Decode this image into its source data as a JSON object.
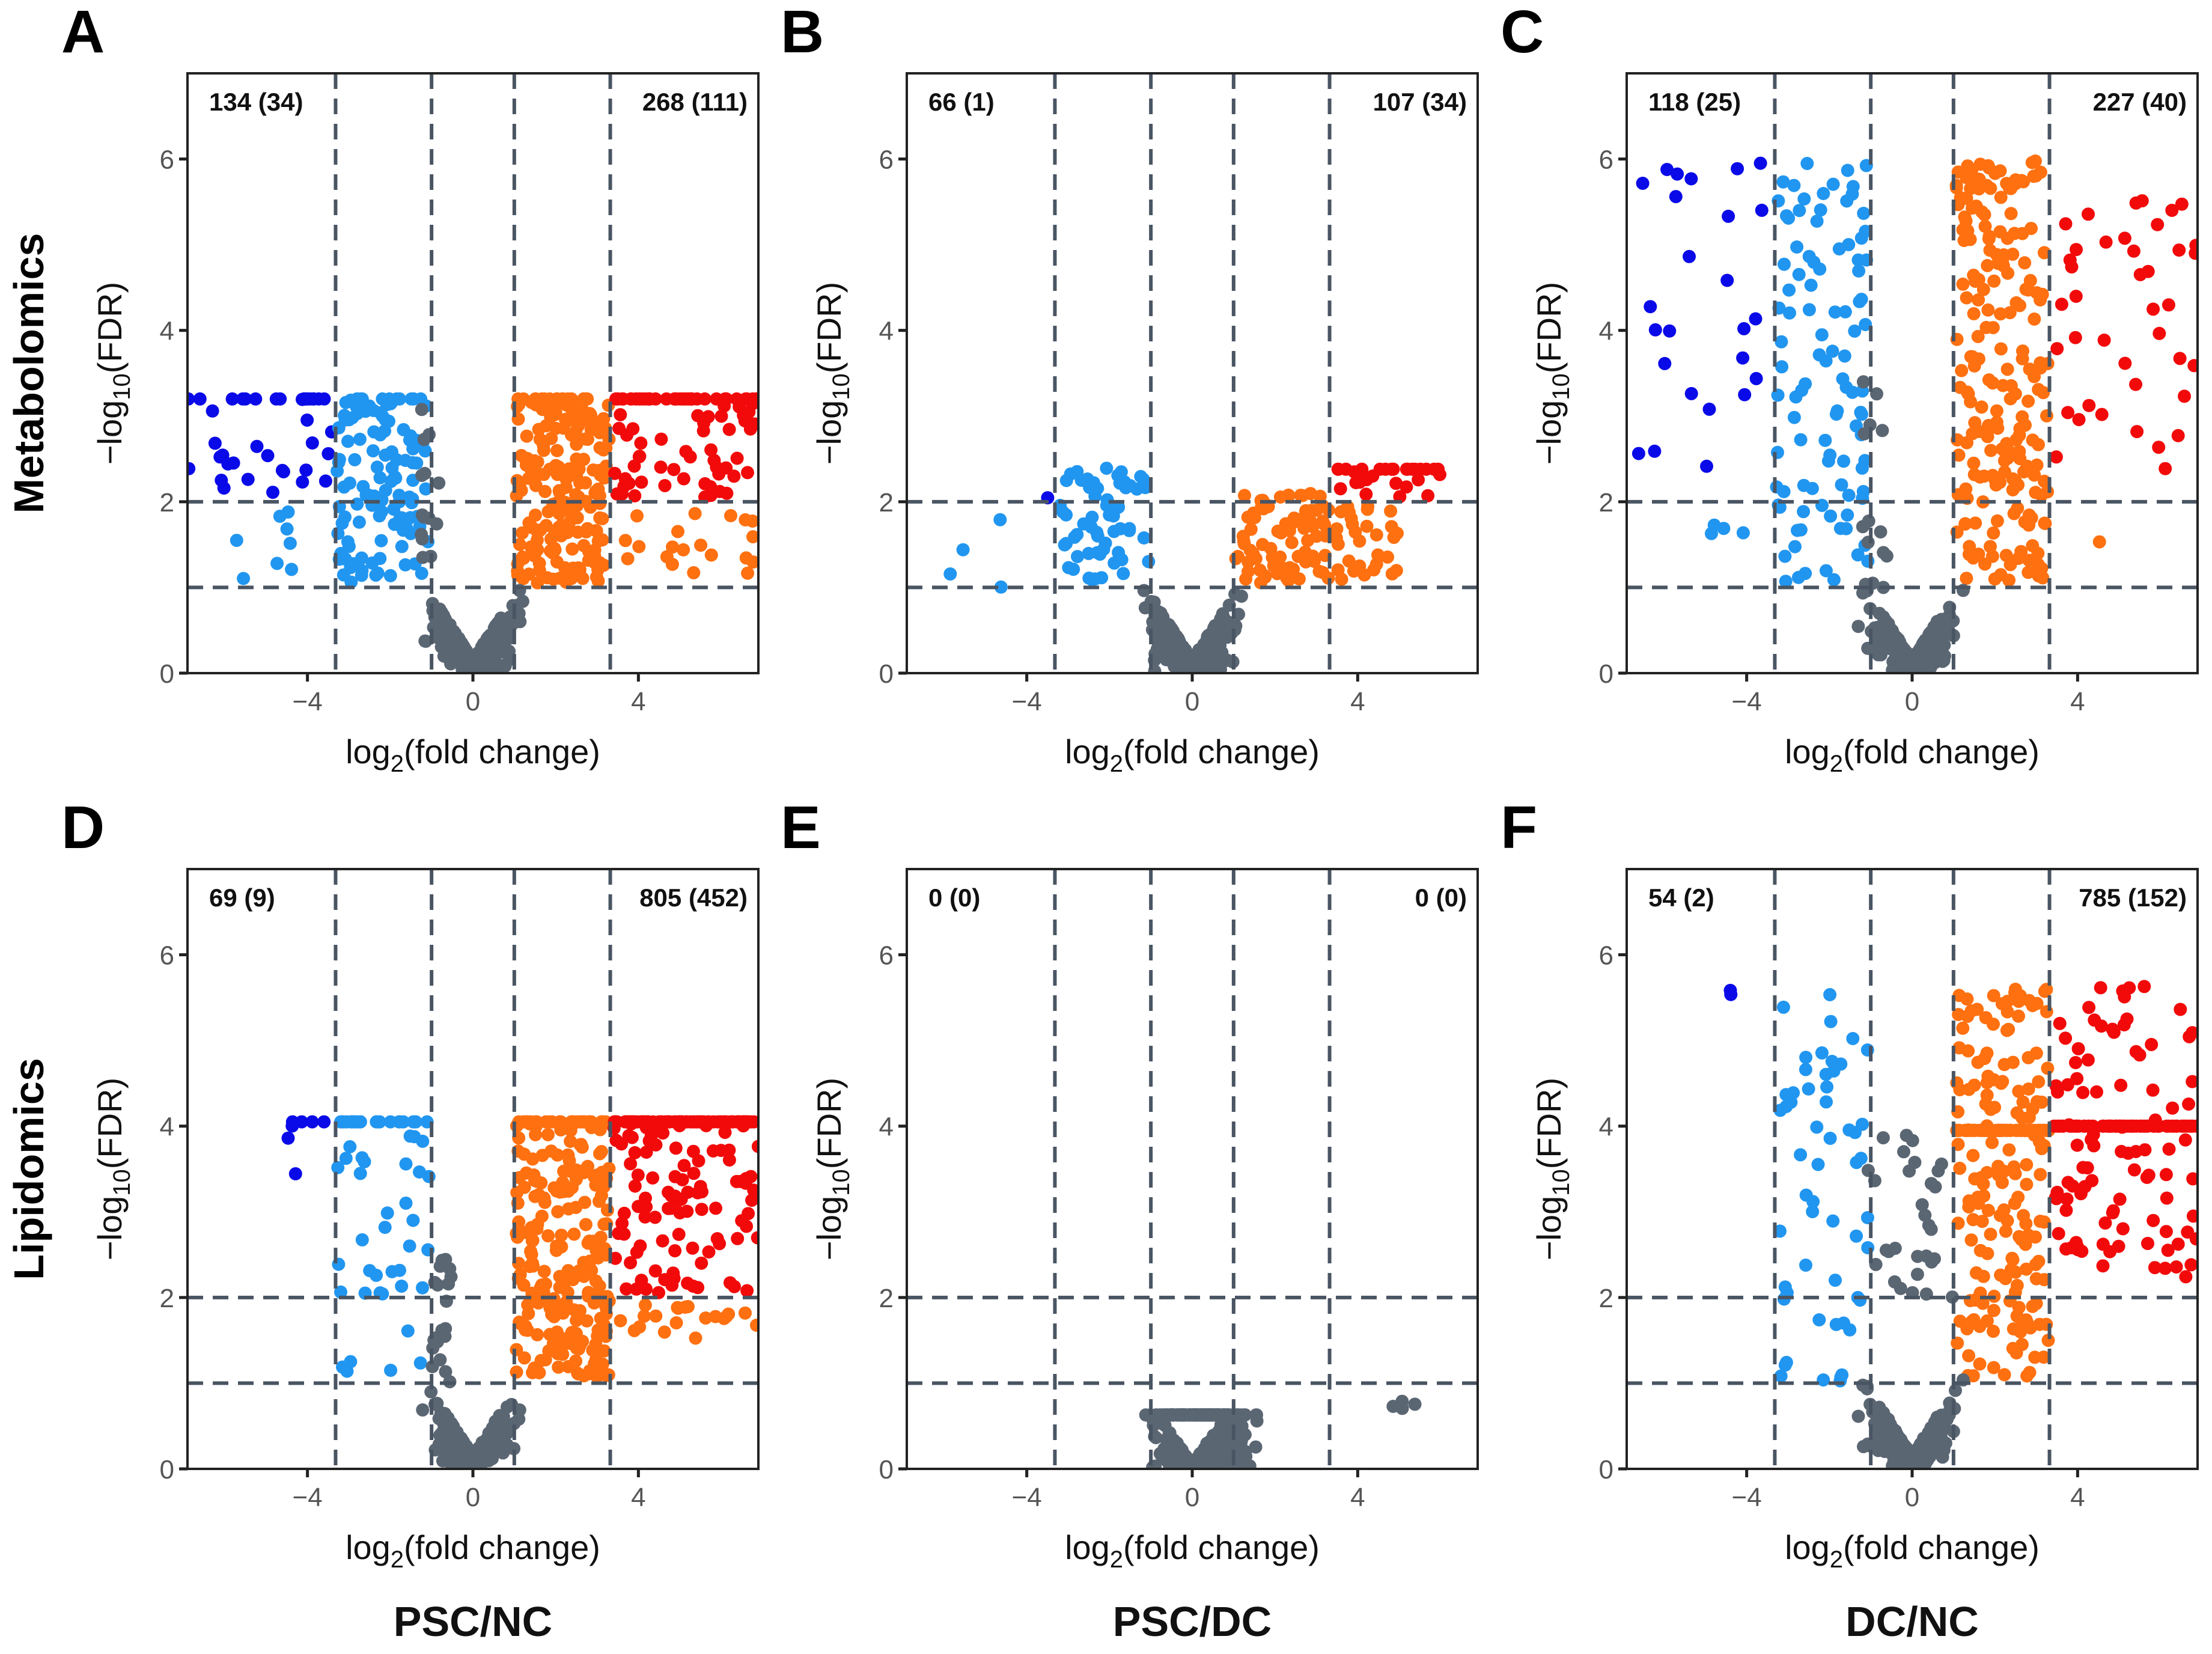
{
  "colors": {
    "down_strong": "#0a0ae8",
    "down": "#2196f0",
    "up": "#ff7010",
    "up_strong": "#f20a0a",
    "ns": "#5b6673",
    "threshold_line": "#4a5563"
  },
  "row_labels": [
    "Metabolomics",
    "Lipidomics"
  ],
  "col_labels": [
    "PSC/NC",
    "PSC/DC",
    "DC/NC"
  ],
  "chart_data": [
    {
      "type": "scatter",
      "panel": "A",
      "row": 0,
      "col": 0,
      "counts_left": "134 (34)",
      "counts_right": "268 (111)",
      "xlabel": {
        "pre": "log",
        "sub": "2",
        "post": "(fold change)"
      },
      "ylabel": {
        "pre": "−log",
        "sub": "10",
        "post": "(FDR)"
      },
      "xlim": [
        -6.9,
        6.9
      ],
      "ylim": [
        0,
        7
      ],
      "xticks": [
        -4,
        0,
        4
      ],
      "xtick_labels": [
        "−4",
        "0",
        "4"
      ],
      "yticks": [
        0,
        2,
        4,
        6
      ],
      "ytick_labels": [
        "0",
        "2",
        "4",
        "6"
      ],
      "vlines": [
        -3.32,
        -1,
        1,
        3.32
      ],
      "hlines": [
        1,
        2
      ],
      "point_groups": [
        {
          "cat": "down_strong",
          "n": 40,
          "x": [
            -6.9,
            -3.4
          ],
          "y": [
            2,
            3.2
          ],
          "cap": 3.2,
          "cap_frac": 0.45
        },
        {
          "cat": "down",
          "n": 8,
          "x": [
            -6.5,
            -3.4
          ],
          "y": [
            1.1,
            1.95
          ]
        },
        {
          "cat": "down",
          "n": 120,
          "x": [
            -3.3,
            -1.05
          ],
          "y": [
            1.05,
            3.2
          ],
          "cap": 3.2,
          "cap_frac": 0.1
        },
        {
          "cat": "up",
          "n": 200,
          "x": [
            1.05,
            3.3
          ],
          "y": [
            1.05,
            3.2
          ],
          "cap": 3.2,
          "cap_frac": 0.08
        },
        {
          "cat": "up",
          "n": 20,
          "x": [
            3.4,
            6.9
          ],
          "y": [
            1.1,
            1.95
          ]
        },
        {
          "cat": "up_strong",
          "n": 90,
          "x": [
            3.4,
            6.9
          ],
          "y": [
            2.05,
            3.2
          ],
          "cap": 3.2,
          "cap_frac": 0.4
        },
        {
          "cat": "ns",
          "n": 350,
          "shape": "v",
          "x": [
            -3.3,
            3.3
          ],
          "y": [
            0,
            1
          ]
        },
        {
          "cat": "ns",
          "n": 14,
          "x": [
            -1.3,
            -0.8
          ],
          "y": [
            1,
            3.2
          ]
        }
      ]
    },
    {
      "type": "scatter",
      "panel": "B",
      "row": 0,
      "col": 1,
      "counts_left": "66 (1)",
      "counts_right": "107 (34)",
      "xlabel": {
        "pre": "log",
        "sub": "2",
        "post": "(fold change)"
      },
      "ylabel": {
        "pre": "−log",
        "sub": "10",
        "post": "(FDR)"
      },
      "xlim": [
        -6.9,
        6.9
      ],
      "ylim": [
        0,
        7
      ],
      "xticks": [
        -4,
        0,
        4
      ],
      "xtick_labels": [
        "−4",
        "0",
        "4"
      ],
      "yticks": [
        0,
        2,
        4,
        6
      ],
      "ytick_labels": [
        "0",
        "2",
        "4",
        "6"
      ],
      "vlines": [
        -3.32,
        -1,
        1,
        3.32
      ],
      "hlines": [
        1,
        2
      ],
      "point_groups": [
        {
          "cat": "down_strong",
          "n": 1,
          "x": [
            -3.5,
            -3.4
          ],
          "y": [
            2.0,
            2.05
          ]
        },
        {
          "cat": "down",
          "n": 4,
          "x": [
            -6.5,
            -3.4
          ],
          "y": [
            1.0,
            1.9
          ]
        },
        {
          "cat": "down",
          "n": 60,
          "x": [
            -3.2,
            -1.05
          ],
          "y": [
            1.05,
            2.4
          ]
        },
        {
          "cat": "up",
          "n": 80,
          "x": [
            1.05,
            3.3
          ],
          "y": [
            1.05,
            2.1
          ]
        },
        {
          "cat": "up",
          "n": 30,
          "x": [
            3.4,
            5.0
          ],
          "y": [
            1.05,
            1.95
          ]
        },
        {
          "cat": "up_strong",
          "n": 30,
          "x": [
            3.4,
            6.0
          ],
          "y": [
            2.05,
            2.38
          ],
          "cap": 2.38,
          "cap_frac": 0.5
        },
        {
          "cat": "ns",
          "n": 420,
          "shape": "v",
          "x": [
            -3.3,
            4.5
          ],
          "y": [
            0,
            1
          ]
        }
      ]
    },
    {
      "type": "scatter",
      "panel": "C",
      "row": 0,
      "col": 2,
      "counts_left": "118 (25)",
      "counts_right": "227 (40)",
      "xlabel": {
        "pre": "log",
        "sub": "2",
        "post": "(fold change)"
      },
      "ylabel": {
        "pre": "−log",
        "sub": "10",
        "post": "(FDR)"
      },
      "xlim": [
        -6.9,
        6.9
      ],
      "ylim": [
        0,
        7
      ],
      "xticks": [
        -4,
        0,
        4
      ],
      "xtick_labels": [
        "−4",
        "0",
        "4"
      ],
      "yticks": [
        0,
        2,
        4,
        6
      ],
      "ytick_labels": [
        "0",
        "2",
        "4",
        "6"
      ],
      "vlines": [
        -3.32,
        -1,
        1,
        3.32
      ],
      "hlines": [
        1,
        2
      ],
      "point_groups": [
        {
          "cat": "down_strong",
          "n": 25,
          "x": [
            -6.9,
            -3.4
          ],
          "y": [
            2.2,
            6.0
          ]
        },
        {
          "cat": "down",
          "n": 4,
          "x": [
            -5.2,
            -3.6
          ],
          "y": [
            1.3,
            1.9
          ]
        },
        {
          "cat": "down",
          "n": 100,
          "x": [
            -3.3,
            -1.05
          ],
          "y": [
            1.05,
            6.0
          ]
        },
        {
          "cat": "up",
          "n": 210,
          "x": [
            1.05,
            3.3
          ],
          "y": [
            1.05,
            6.0
          ]
        },
        {
          "cat": "up",
          "n": 1,
          "x": [
            4.5,
            4.6
          ],
          "y": [
            1.5,
            1.55
          ]
        },
        {
          "cat": "up_strong",
          "n": 40,
          "x": [
            3.4,
            6.9
          ],
          "y": [
            2.1,
            6.0
          ]
        },
        {
          "cat": "ns",
          "n": 360,
          "shape": "v",
          "x": [
            -3.3,
            2.2
          ],
          "y": [
            0,
            1
          ]
        },
        {
          "cat": "ns",
          "n": 14,
          "x": [
            -1.2,
            -0.6
          ],
          "y": [
            1,
            3.5
          ]
        }
      ]
    },
    {
      "type": "scatter",
      "panel": "D",
      "row": 1,
      "col": 0,
      "counts_left": "69 (9)",
      "counts_right": "805 (452)",
      "xlabel": {
        "pre": "log",
        "sub": "2",
        "post": "(fold change)"
      },
      "ylabel": {
        "pre": "−log",
        "sub": "10",
        "post": "(FDR)"
      },
      "xlim": [
        -6.9,
        6.9
      ],
      "ylim": [
        0,
        7
      ],
      "xticks": [
        -4,
        0,
        4
      ],
      "xtick_labels": [
        "−4",
        "0",
        "4"
      ],
      "yticks": [
        0,
        2,
        4,
        6
      ],
      "ytick_labels": [
        "0",
        "2",
        "4",
        "6"
      ],
      "vlines": [
        -3.32,
        -1,
        1,
        3.32
      ],
      "hlines": [
        1,
        2
      ],
      "point_groups": [
        {
          "cat": "down_strong",
          "n": 7,
          "x": [
            -4.5,
            -3.4
          ],
          "y": [
            3.4,
            4.05
          ],
          "cap": 4.05,
          "cap_frac": 0.6
        },
        {
          "cat": "down",
          "n": 60,
          "x": [
            -3.3,
            -1.05
          ],
          "y": [
            1.1,
            4.05
          ],
          "cap": 4.05,
          "cap_frac": 0.3
        },
        {
          "cat": "up",
          "n": 250,
          "x": [
            1.05,
            3.3
          ],
          "y": [
            1.05,
            4.05
          ],
          "cap": 4.05,
          "cap_frac": 0.15
        },
        {
          "cat": "up",
          "n": 20,
          "x": [
            3.4,
            6.9
          ],
          "y": [
            1.5,
            1.95
          ]
        },
        {
          "cat": "up_strong",
          "n": 190,
          "x": [
            3.4,
            6.9
          ],
          "y": [
            2.05,
            4.05
          ],
          "cap": 4.05,
          "cap_frac": 0.5
        },
        {
          "cat": "ns",
          "n": 300,
          "shape": "v",
          "x": [
            -2.0,
            2.0
          ],
          "y": [
            0,
            1
          ]
        },
        {
          "cat": "ns",
          "n": 20,
          "x": [
            -1.0,
            -0.5
          ],
          "y": [
            1,
            2.6
          ]
        }
      ]
    },
    {
      "type": "scatter",
      "panel": "E",
      "row": 1,
      "col": 1,
      "counts_left": "0 (0)",
      "counts_right": "0 (0)",
      "xlabel": {
        "pre": "log",
        "sub": "2",
        "post": "(fold change)"
      },
      "ylabel": {
        "pre": "−log",
        "sub": "10",
        "post": "(FDR)"
      },
      "xlim": [
        -6.9,
        6.9
      ],
      "ylim": [
        0,
        7
      ],
      "xticks": [
        -4,
        0,
        4
      ],
      "xtick_labels": [
        "−4",
        "0",
        "4"
      ],
      "yticks": [
        0,
        2,
        4,
        6
      ],
      "ytick_labels": [
        "0",
        "2",
        "4",
        "6"
      ],
      "vlines": [
        -3.32,
        -1,
        1,
        3.32
      ],
      "hlines": [
        1,
        2
      ],
      "point_groups": [
        {
          "cat": "ns",
          "n": 600,
          "shape": "flat",
          "x": [
            -3.0,
            3.8
          ],
          "y": [
            0,
            0.63
          ],
          "cap": 0.63,
          "cap_frac": 0.35
        },
        {
          "cat": "ns",
          "n": 4,
          "x": [
            4.8,
            6.3
          ],
          "y": [
            0.7,
            0.8
          ]
        }
      ]
    },
    {
      "type": "scatter",
      "panel": "F",
      "row": 1,
      "col": 2,
      "counts_left": "54 (2)",
      "counts_right": "785 (152)",
      "xlabel": {
        "pre": "log",
        "sub": "2",
        "post": "(fold change)"
      },
      "ylabel": {
        "pre": "−log",
        "sub": "10",
        "post": "(FDR)"
      },
      "xlim": [
        -6.9,
        6.9
      ],
      "ylim": [
        0,
        7
      ],
      "xticks": [
        -4,
        0,
        4
      ],
      "xtick_labels": [
        "−4",
        "0",
        "4"
      ],
      "yticks": [
        0,
        2,
        4,
        6
      ],
      "ytick_labels": [
        "0",
        "2",
        "4",
        "6"
      ],
      "vlines": [
        -3.32,
        -1,
        1,
        3.32
      ],
      "hlines": [
        1,
        2
      ],
      "point_groups": [
        {
          "cat": "down_strong",
          "n": 2,
          "x": [
            -4.5,
            -4.2
          ],
          "y": [
            5.3,
            5.6
          ]
        },
        {
          "cat": "down",
          "n": 55,
          "x": [
            -3.2,
            -1.05
          ],
          "y": [
            1.0,
            5.7
          ]
        },
        {
          "cat": "up",
          "n": 240,
          "x": [
            1.05,
            3.3
          ],
          "y": [
            1.05,
            5.6
          ],
          "cap": 3.95,
          "cap_frac": 0.3
        },
        {
          "cat": "up_strong",
          "n": 160,
          "x": [
            3.4,
            6.9
          ],
          "y": [
            2.2,
            5.7
          ],
          "cap": 4.0,
          "cap_frac": 0.45
        },
        {
          "cat": "ns",
          "n": 330,
          "shape": "v",
          "x": [
            -1.3,
            1.5
          ],
          "y": [
            0,
            2
          ]
        },
        {
          "cat": "ns",
          "n": 30,
          "x": [
            -1.1,
            1.0
          ],
          "y": [
            2,
            4.0
          ]
        }
      ]
    }
  ]
}
